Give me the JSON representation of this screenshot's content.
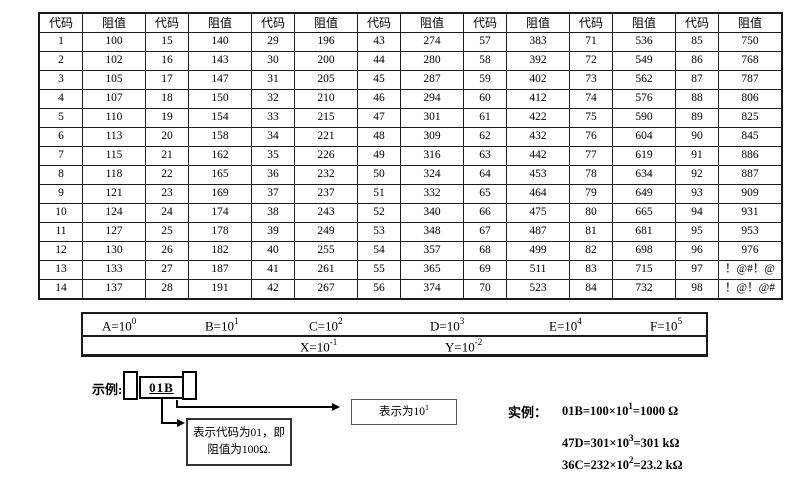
{
  "page": {
    "background": "#ffffff",
    "line_color": "#000000"
  },
  "table": {
    "code_header": "代码",
    "value_header": "阻值",
    "groups": [
      {
        "codes": [
          "1",
          "2",
          "3",
          "4",
          "5",
          "6",
          "7",
          "8",
          "9",
          "10",
          "11",
          "12",
          "13",
          "14"
        ],
        "values": [
          "100",
          "102",
          "105",
          "107",
          "110",
          "113",
          "115",
          "118",
          "121",
          "124",
          "127",
          "130",
          "133",
          "137"
        ]
      },
      {
        "codes": [
          "15",
          "16",
          "17",
          "18",
          "19",
          "20",
          "21",
          "22",
          "23",
          "24",
          "25",
          "26",
          "27",
          "28"
        ],
        "values": [
          "140",
          "143",
          "147",
          "150",
          "154",
          "158",
          "162",
          "165",
          "169",
          "174",
          "178",
          "182",
          "187",
          "191"
        ]
      },
      {
        "codes": [
          "29",
          "30",
          "31",
          "32",
          "33",
          "34",
          "35",
          "36",
          "37",
          "38",
          "39",
          "40",
          "41",
          "42"
        ],
        "values": [
          "196",
          "200",
          "205",
          "210",
          "215",
          "221",
          "226",
          "232",
          "237",
          "243",
          "249",
          "255",
          "261",
          "267"
        ]
      },
      {
        "codes": [
          "43",
          "44",
          "45",
          "46",
          "47",
          "48",
          "49",
          "50",
          "51",
          "52",
          "53",
          "54",
          "55",
          "56"
        ],
        "values": [
          "274",
          "280",
          "287",
          "294",
          "301",
          "309",
          "316",
          "324",
          "332",
          "340",
          "348",
          "357",
          "365",
          "374"
        ]
      },
      {
        "codes": [
          "57",
          "58",
          "59",
          "60",
          "61",
          "62",
          "63",
          "64",
          "65",
          "66",
          "67",
          "68",
          "69",
          "70"
        ],
        "values": [
          "383",
          "392",
          "402",
          "412",
          "422",
          "432",
          "442",
          "453",
          "464",
          "475",
          "487",
          "499",
          "511",
          "523"
        ]
      },
      {
        "codes": [
          "71",
          "72",
          "73",
          "74",
          "75",
          "76",
          "77",
          "78",
          "79",
          "80",
          "81",
          "82",
          "83",
          "84"
        ],
        "values": [
          "536",
          "549",
          "562",
          "576",
          "590",
          "604",
          "619",
          "634",
          "649",
          "665",
          "681",
          "698",
          "715",
          "732"
        ]
      },
      {
        "codes": [
          "85",
          "86",
          "87",
          "88",
          "89",
          "90",
          "91",
          "92",
          "93",
          "94",
          "95",
          "96",
          "97",
          "98"
        ],
        "values": [
          "750",
          "768",
          "787",
          "806",
          "825",
          "845",
          "886",
          "887",
          "909",
          "931",
          "953",
          "976",
          "！@#！@",
          "！@！@#"
        ]
      }
    ]
  },
  "multipliers": {
    "row1": [
      {
        "base": "A=10",
        "exp": "0"
      },
      {
        "base": "B=10",
        "exp": "1"
      },
      {
        "base": "C=10",
        "exp": "2"
      },
      {
        "base": "D=10",
        "exp": "3"
      },
      {
        "base": "E=10",
        "exp": "4"
      },
      {
        "base": "F=10",
        "exp": "5"
      }
    ],
    "row2": [
      {
        "base": "X=10",
        "exp": "-1"
      },
      {
        "base": "Y=10",
        "exp": "-2"
      }
    ]
  },
  "example": {
    "label": "示例:",
    "chip_text": "01B",
    "callout_code_line1": "表示代码为01，即",
    "callout_code_line2": "阻值为100Ω.",
    "callout_mult": {
      "base": "表示为10",
      "exp": "1"
    }
  },
  "instances": {
    "label": "实例：",
    "lines": [
      {
        "pre": "01B=100×10",
        "exp": "1",
        "post": "=1000 Ω"
      },
      {
        "pre": "47D=301×10",
        "exp": "3",
        "post": "=301 kΩ"
      },
      {
        "pre": "36C=232×10",
        "exp": "2",
        "post": "=23.2 kΩ"
      }
    ]
  }
}
